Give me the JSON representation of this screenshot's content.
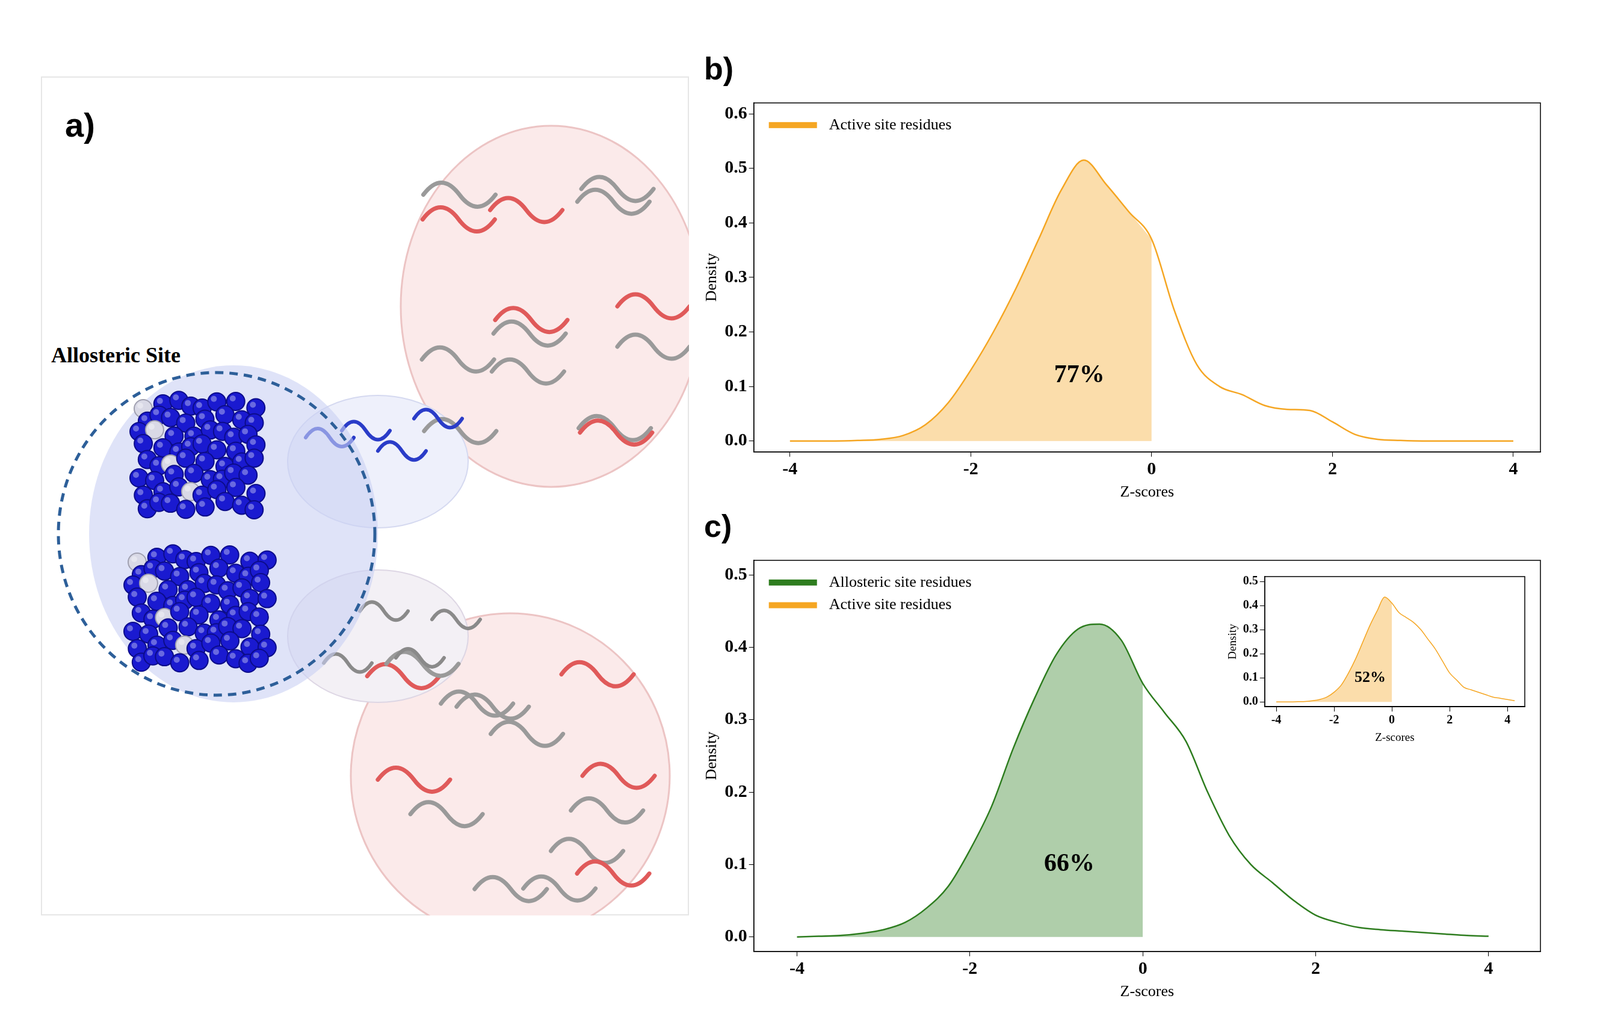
{
  "panel_a": {
    "panel": "a)",
    "label": "Allosteric Site"
  },
  "chart_data": [
    {
      "panel": "b)",
      "type": "line",
      "x_label": "Z-scores",
      "y_label": "Density",
      "x": [
        -4,
        -3.75,
        -3.5,
        -3.25,
        -3,
        -2.75,
        -2.5,
        -2.25,
        -2,
        -1.75,
        -1.5,
        -1.25,
        -1,
        -0.75,
        -0.5,
        -0.25,
        0,
        0.25,
        0.5,
        0.75,
        1,
        1.25,
        1.5,
        1.75,
        2,
        2.25,
        2.5,
        2.75,
        3,
        3.25,
        3.5,
        3.75,
        4
      ],
      "series": [
        {
          "name": "Active site residues",
          "color": "#f5a623",
          "values": [
            0,
            0,
            0,
            0.001,
            0.003,
            0.01,
            0.03,
            0.07,
            0.13,
            0.2,
            0.28,
            0.37,
            0.46,
            0.515,
            0.47,
            0.42,
            0.37,
            0.24,
            0.14,
            0.1,
            0.085,
            0.065,
            0.058,
            0.056,
            0.035,
            0.012,
            0.003,
            0.001,
            0,
            0,
            0,
            0,
            0
          ]
        }
      ],
      "shade_to_x": 0,
      "annotations": [
        {
          "text": "77%",
          "x": -0.8,
          "y": 0.12
        }
      ],
      "xlim": [
        -4.4,
        4.3
      ],
      "xticks": [
        -4,
        -2,
        0,
        2,
        4
      ],
      "ylim": [
        -0.02,
        0.62
      ],
      "yticks": [
        {
          "value": 0,
          "label": "0.0"
        },
        0.1,
        0.2,
        0.3,
        0.4,
        0.5,
        0.6
      ],
      "grid": false,
      "legend": "upper left"
    },
    {
      "panel": "c)",
      "type": "line",
      "x_label": "Z-scores",
      "y_label": "Density",
      "x": [
        -4,
        -3.75,
        -3.5,
        -3.25,
        -3,
        -2.75,
        -2.5,
        -2.25,
        -2,
        -1.75,
        -1.5,
        -1.25,
        -1,
        -0.75,
        -0.5,
        -0.25,
        0,
        0.25,
        0.5,
        0.75,
        1,
        1.25,
        1.5,
        1.75,
        2,
        2.25,
        2.5,
        2.75,
        3,
        3.25,
        3.5,
        3.75,
        4
      ],
      "series": [
        {
          "name": "Allosteric site residues",
          "color": "#2e7d1f",
          "values": [
            0,
            0.001,
            0.002,
            0.005,
            0.01,
            0.02,
            0.04,
            0.07,
            0.12,
            0.18,
            0.26,
            0.33,
            0.39,
            0.425,
            0.432,
            0.41,
            0.35,
            0.31,
            0.27,
            0.2,
            0.14,
            0.1,
            0.075,
            0.05,
            0.03,
            0.02,
            0.013,
            0.01,
            0.008,
            0.006,
            0.004,
            0.002,
            0.001
          ]
        }
      ],
      "shade_to_x": 0,
      "annotations": [
        {
          "text": "66%",
          "x": -0.85,
          "y": 0.1
        }
      ],
      "xlim": [
        -4.5,
        4.6
      ],
      "xticks": [
        -4,
        -2,
        0,
        2,
        4
      ],
      "ylim": [
        -0.02,
        0.52
      ],
      "yticks": [
        {
          "value": 0,
          "label": "0.0"
        },
        0.1,
        0.2,
        0.3,
        0.4,
        0.5
      ],
      "grid": false,
      "legend": "upper left",
      "inset": {
        "type": "line",
        "x_label": "Z-scores",
        "y_label": "Density",
        "x": [
          -4,
          -3.75,
          -3.5,
          -3.25,
          -3,
          -2.75,
          -2.5,
          -2.25,
          -2,
          -1.75,
          -1.5,
          -1.25,
          -1,
          -0.75,
          -0.5,
          -0.25,
          0,
          0.25,
          0.5,
          0.75,
          1,
          1.25,
          1.5,
          1.75,
          2,
          2.25,
          2.5,
          2.75,
          3,
          3.25,
          3.5,
          3.75,
          4,
          4.25
        ],
        "series": [
          {
            "name": "Active site residues",
            "color": "#f5a623",
            "values": [
              0,
              0,
              0,
              0.001,
              0.002,
              0.005,
              0.01,
              0.02,
              0.04,
              0.07,
              0.12,
              0.18,
              0.25,
              0.32,
              0.38,
              0.435,
              0.41,
              0.37,
              0.35,
              0.33,
              0.3,
              0.26,
              0.22,
              0.17,
              0.12,
              0.09,
              0.06,
              0.05,
              0.04,
              0.03,
              0.02,
              0.015,
              0.01,
              0.005
            ]
          }
        ],
        "shade_to_x": 0,
        "annotations": [
          {
            "text": "52%",
            "x": -0.75,
            "y": 0.1
          }
        ],
        "xlim": [
          -4.4,
          4.6
        ],
        "xticks": [
          -4,
          -2,
          0,
          2,
          4
        ],
        "ylim": [
          -0.02,
          0.52
        ],
        "yticks": [
          {
            "value": 0,
            "label": "0.0"
          },
          0.1,
          0.2,
          0.3,
          0.4,
          0.5
        ],
        "grid": false
      }
    }
  ]
}
